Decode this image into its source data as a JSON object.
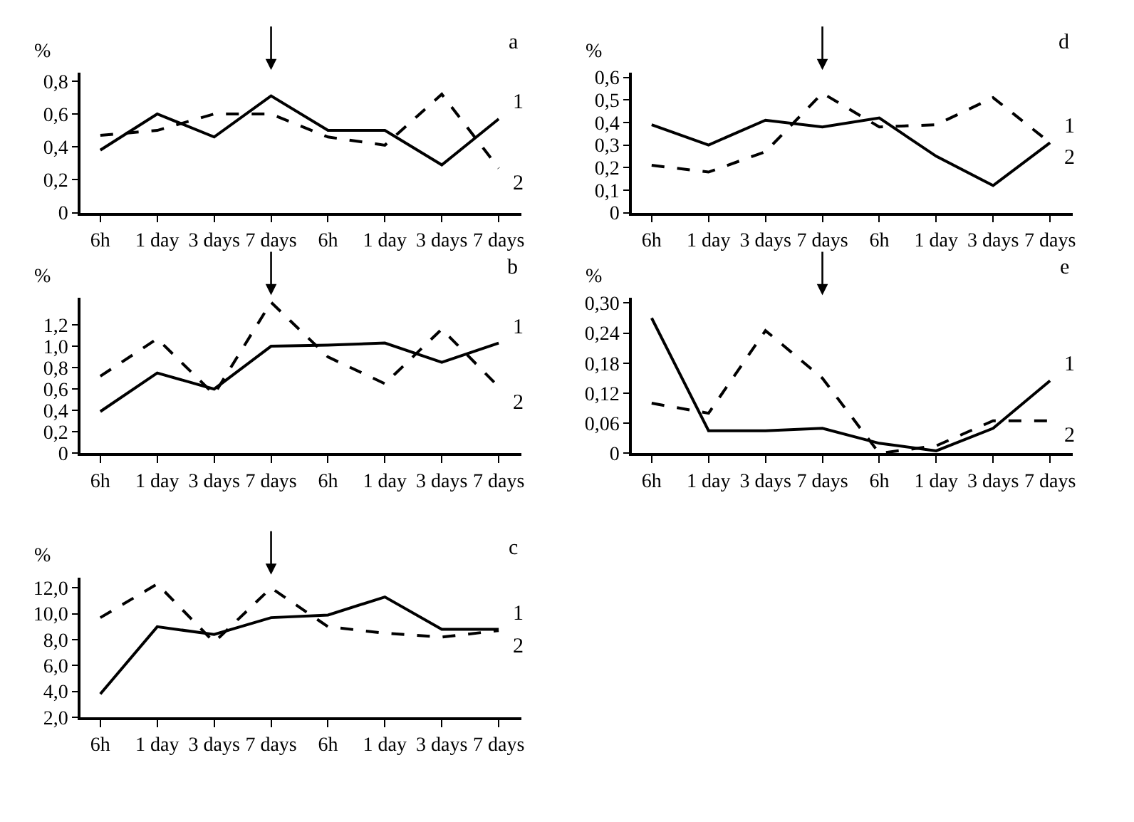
{
  "chart_data": [
    {
      "type": "line",
      "title": "a",
      "ylabel": "%",
      "categories": [
        "6h",
        "1 day",
        "3 days",
        "7 days",
        "6h",
        "1 day",
        "3 days",
        "7 days"
      ],
      "ylim": [
        0,
        0.85
      ],
      "yticks": [
        {
          "value": 0,
          "label": "0"
        },
        {
          "value": 0.2,
          "label": "0,2"
        },
        {
          "value": 0.4,
          "label": "0,4"
        },
        {
          "value": 0.6,
          "label": "0,6"
        },
        {
          "value": 0.8,
          "label": "0,8"
        }
      ],
      "series": [
        {
          "name": "1",
          "color": "#000000",
          "line_style": "solid",
          "values": [
            0.38,
            0.6,
            0.46,
            0.71,
            0.5,
            0.5,
            0.29,
            0.57
          ]
        },
        {
          "name": "2",
          "color": "#000000",
          "line_style": "dashed",
          "values": [
            0.47,
            0.5,
            0.6,
            0.6,
            0.46,
            0.41,
            0.72,
            0.27
          ]
        }
      ]
    },
    {
      "type": "line",
      "title": "b",
      "ylabel": "%",
      "categories": [
        "6h",
        "1 day",
        "3 days",
        "7 days",
        "6h",
        "1 day",
        "3 days",
        "7 days"
      ],
      "ylim": [
        0,
        1.45
      ],
      "yticks": [
        {
          "value": 0,
          "label": "0"
        },
        {
          "value": 0.2,
          "label": "0,2"
        },
        {
          "value": 0.4,
          "label": "0,4"
        },
        {
          "value": 0.6,
          "label": "0,6"
        },
        {
          "value": 0.8,
          "label": "0,8"
        },
        {
          "value": 1.0,
          "label": "1,0"
        },
        {
          "value": 1.2,
          "label": "1,2"
        }
      ],
      "series": [
        {
          "name": "1",
          "color": "#000000",
          "line_style": "solid",
          "values": [
            0.39,
            0.75,
            0.6,
            1.0,
            1.01,
            1.03,
            0.85,
            1.03
          ]
        },
        {
          "name": "2",
          "color": "#000000",
          "line_style": "dashed",
          "values": [
            0.72,
            1.07,
            0.55,
            1.41,
            0.9,
            0.65,
            1.16,
            0.62
          ]
        }
      ]
    },
    {
      "type": "line",
      "title": "c",
      "ylabel": "%",
      "categories": [
        "6h",
        "1 day",
        "3 days",
        "7 days",
        "6h",
        "1 day",
        "3 days",
        "7 days"
      ],
      "ylim": [
        2,
        12.8
      ],
      "yticks": [
        {
          "value": 2,
          "label": "2,0"
        },
        {
          "value": 4,
          "label": "4,0"
        },
        {
          "value": 6,
          "label": "6,0"
        },
        {
          "value": 8,
          "label": "8,0"
        },
        {
          "value": 10,
          "label": "10,0"
        },
        {
          "value": 12,
          "label": "12,0"
        }
      ],
      "series": [
        {
          "name": "1",
          "color": "#000000",
          "line_style": "solid",
          "values": [
            3.8,
            9.0,
            8.4,
            9.7,
            9.9,
            11.3,
            8.8,
            8.8
          ]
        },
        {
          "name": "2",
          "color": "#000000",
          "line_style": "dashed",
          "values": [
            9.7,
            12.3,
            7.8,
            12.0,
            9.0,
            8.5,
            8.2,
            8.7
          ]
        }
      ]
    },
    {
      "type": "line",
      "title": "d",
      "ylabel": "%",
      "categories": [
        "6h",
        "1 day",
        "3 days",
        "7 days",
        "6h",
        "1 day",
        "3 days",
        "7 days"
      ],
      "ylim": [
        0,
        0.62
      ],
      "yticks": [
        {
          "value": 0,
          "label": "0"
        },
        {
          "value": 0.1,
          "label": "0,1"
        },
        {
          "value": 0.2,
          "label": "0,2"
        },
        {
          "value": 0.3,
          "label": "0,3"
        },
        {
          "value": 0.4,
          "label": "0,4"
        },
        {
          "value": 0.5,
          "label": "0,5"
        },
        {
          "value": 0.6,
          "label": "0,6"
        }
      ],
      "series": [
        {
          "name": "1",
          "color": "#000000",
          "line_style": "solid",
          "values": [
            0.39,
            0.3,
            0.41,
            0.38,
            0.42,
            0.25,
            0.12,
            0.31
          ]
        },
        {
          "name": "2",
          "color": "#000000",
          "line_style": "dashed",
          "values": [
            0.21,
            0.18,
            0.27,
            0.53,
            0.38,
            0.39,
            0.51,
            0.31
          ]
        }
      ]
    },
    {
      "type": "line",
      "title": "e",
      "ylabel": "%",
      "categories": [
        "6h",
        "1 day",
        "3 days",
        "7 days",
        "6h",
        "1 day",
        "3 days",
        "7 days"
      ],
      "ylim": [
        0,
        0.31
      ],
      "yticks": [
        {
          "value": 0,
          "label": "0"
        },
        {
          "value": 0.06,
          "label": "0,06"
        },
        {
          "value": 0.12,
          "label": "0,12"
        },
        {
          "value": 0.18,
          "label": "0,18"
        },
        {
          "value": 0.24,
          "label": "0,24"
        },
        {
          "value": 0.3,
          "label": "0,30"
        }
      ],
      "series": [
        {
          "name": "1",
          "color": "#000000",
          "line_style": "solid",
          "values": [
            0.27,
            0.045,
            0.045,
            0.05,
            0.02,
            0.005,
            0.05,
            0.145
          ]
        },
        {
          "name": "2",
          "color": "#000000",
          "line_style": "dashed",
          "values": [
            0.1,
            0.08,
            0.245,
            0.15,
            0.0,
            0.015,
            0.065,
            0.065
          ]
        }
      ]
    }
  ]
}
